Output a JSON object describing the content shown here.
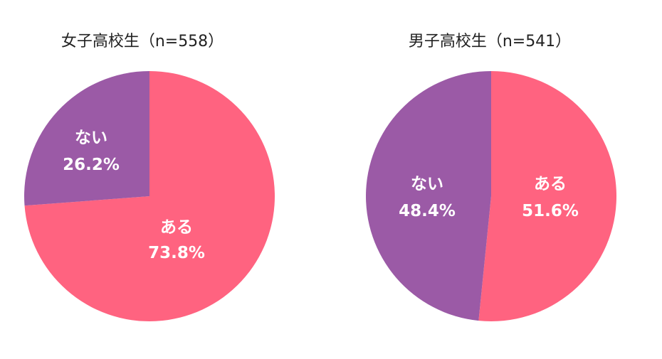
{
  "chart_data": [
    {
      "type": "pie",
      "title": "女子高校生（n=558）",
      "slices": [
        {
          "label": "ある",
          "value": 73.8,
          "value_label": "73.8%",
          "color": "#ff6380"
        },
        {
          "label": "ない",
          "value": 26.2,
          "value_label": "26.2%",
          "color": "#9b5aa6"
        }
      ]
    },
    {
      "type": "pie",
      "title": "男子高校生（n=541）",
      "slices": [
        {
          "label": "ある",
          "value": 51.6,
          "value_label": "51.6%",
          "color": "#ff6380"
        },
        {
          "label": "ない",
          "value": 48.4,
          "value_label": "48.4%",
          "color": "#9b5aa6"
        }
      ]
    }
  ]
}
